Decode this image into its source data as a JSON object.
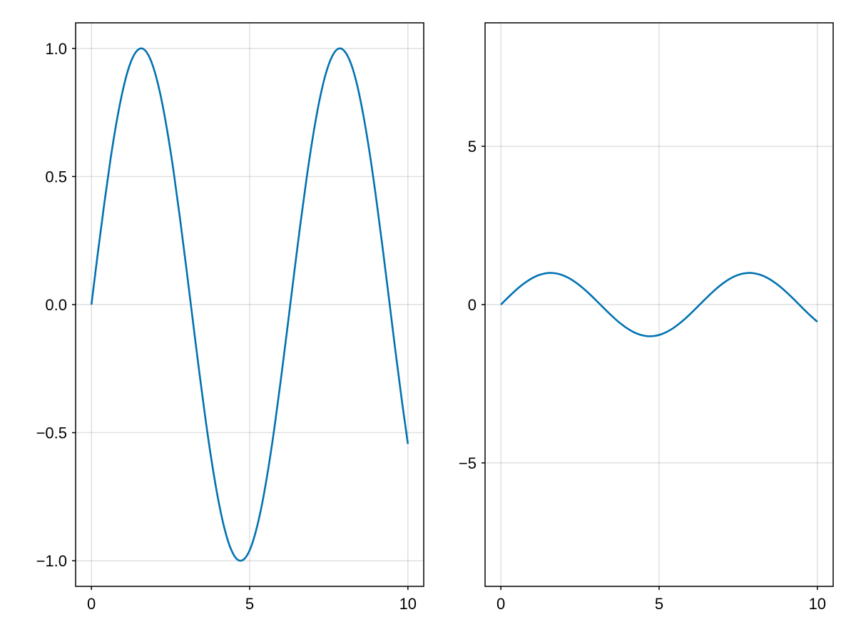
{
  "chart_data": [
    {
      "type": "line",
      "xlim": [
        -0.5,
        10.5
      ],
      "ylim": [
        -1.1,
        1.1
      ],
      "xticks": [
        0,
        5,
        10
      ],
      "xtick_labels": [
        "0",
        "5",
        "10"
      ],
      "yticks": [
        -1.0,
        -0.5,
        0.0,
        0.5,
        1.0
      ],
      "ytick_labels": [
        "−1.0",
        "−0.5",
        "0.0",
        "0.5",
        "1.0"
      ],
      "grid": true,
      "series": [
        {
          "color": "#0072b2",
          "x": [
            0,
            0.2,
            0.4,
            0.6,
            0.8,
            1.0,
            1.2,
            1.4,
            1.6,
            1.8,
            2.0,
            2.2,
            2.4,
            2.6,
            2.8,
            3.0,
            3.2,
            3.4,
            3.6,
            3.8,
            4.0,
            4.2,
            4.4,
            4.6,
            4.8,
            5.0,
            5.2,
            5.4,
            5.6,
            5.8,
            6.0,
            6.2,
            6.4,
            6.6,
            6.8,
            7.0,
            7.2,
            7.4,
            7.6,
            7.8,
            8.0,
            8.2,
            8.4,
            8.6,
            8.8,
            9.0,
            9.2,
            9.4,
            9.6,
            9.8,
            10.0
          ],
          "y": [
            0.0,
            0.199,
            0.389,
            0.565,
            0.717,
            0.841,
            0.932,
            0.985,
            1.0,
            0.974,
            0.909,
            0.808,
            0.675,
            0.516,
            0.335,
            0.141,
            -0.058,
            -0.256,
            -0.443,
            -0.612,
            -0.757,
            -0.872,
            -0.952,
            -0.994,
            -0.996,
            -0.959,
            -0.883,
            -0.773,
            -0.631,
            -0.465,
            -0.279,
            -0.083,
            0.117,
            0.312,
            0.494,
            0.657,
            0.794,
            0.899,
            0.968,
            0.999,
            0.989,
            0.941,
            0.855,
            0.734,
            0.585,
            0.412,
            0.223,
            0.025,
            -0.175,
            -0.366,
            -0.544
          ]
        }
      ]
    },
    {
      "type": "line",
      "xlim": [
        -0.5,
        10.5
      ],
      "ylim": [
        -8.9,
        8.9
      ],
      "xticks": [
        0,
        5,
        10
      ],
      "xtick_labels": [
        "0",
        "5",
        "10"
      ],
      "yticks": [
        -5,
        0,
        5
      ],
      "ytick_labels": [
        "−5",
        "0",
        "5"
      ],
      "grid": true,
      "series": [
        {
          "color": "#0072b2",
          "x": [
            0,
            0.2,
            0.4,
            0.6,
            0.8,
            1.0,
            1.2,
            1.4,
            1.6,
            1.8,
            2.0,
            2.2,
            2.4,
            2.6,
            2.8,
            3.0,
            3.2,
            3.4,
            3.6,
            3.8,
            4.0,
            4.2,
            4.4,
            4.6,
            4.8,
            5.0,
            5.2,
            5.4,
            5.6,
            5.8,
            6.0,
            6.2,
            6.4,
            6.6,
            6.8,
            7.0,
            7.2,
            7.4,
            7.6,
            7.8,
            8.0,
            8.2,
            8.4,
            8.6,
            8.8,
            9.0,
            9.2,
            9.4,
            9.6,
            9.8,
            10.0
          ],
          "y": [
            0.0,
            0.199,
            0.389,
            0.565,
            0.717,
            0.841,
            0.932,
            0.985,
            1.0,
            0.974,
            0.909,
            0.808,
            0.675,
            0.516,
            0.335,
            0.141,
            -0.058,
            -0.256,
            -0.443,
            -0.612,
            -0.757,
            -0.872,
            -0.952,
            -0.994,
            -0.996,
            -0.959,
            -0.883,
            -0.773,
            -0.631,
            -0.465,
            -0.279,
            -0.083,
            0.117,
            0.312,
            0.494,
            0.657,
            0.794,
            0.899,
            0.968,
            0.999,
            0.989,
            0.941,
            0.855,
            0.734,
            0.585,
            0.412,
            0.223,
            0.025,
            -0.175,
            -0.366,
            -0.544
          ]
        }
      ]
    }
  ]
}
